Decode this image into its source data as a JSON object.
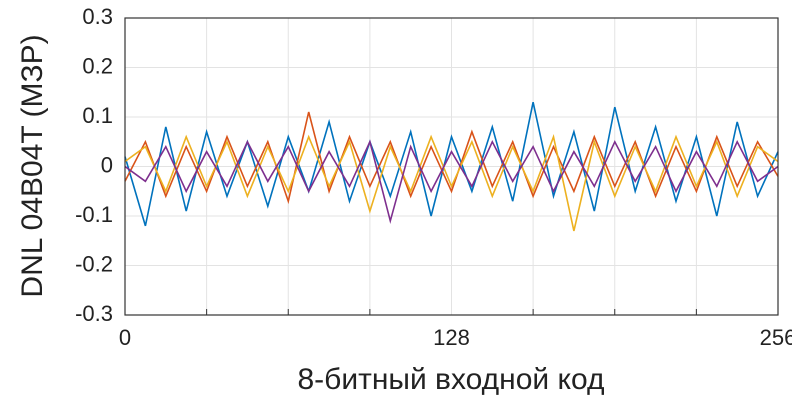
{
  "chart_data": {
    "type": "line",
    "ylabel": "DNL 04B04T (МЗР)",
    "xlabel": "8-битный входной код",
    "x": [
      0,
      8,
      16,
      24,
      32,
      40,
      48,
      56,
      64,
      72,
      80,
      88,
      96,
      104,
      112,
      120,
      128,
      136,
      144,
      152,
      160,
      168,
      176,
      184,
      192,
      200,
      208,
      216,
      224,
      232,
      240,
      248,
      256
    ],
    "series": [
      {
        "color": "#0072bd",
        "values": [
          0.02,
          -0.12,
          0.08,
          -0.09,
          0.07,
          -0.06,
          0.05,
          -0.08,
          0.06,
          -0.05,
          0.09,
          -0.07,
          0.05,
          -0.06,
          0.07,
          -0.1,
          0.06,
          -0.05,
          0.08,
          -0.07,
          0.13,
          -0.06,
          0.07,
          -0.09,
          0.12,
          -0.05,
          0.08,
          -0.07,
          0.06,
          -0.1,
          0.09,
          -0.06,
          0.03
        ]
      },
      {
        "color": "#d95319",
        "values": [
          -0.03,
          0.05,
          -0.06,
          0.04,
          -0.05,
          0.06,
          -0.04,
          0.05,
          -0.07,
          0.11,
          -0.05,
          0.06,
          -0.04,
          0.05,
          -0.06,
          0.04,
          -0.05,
          0.07,
          -0.04,
          0.05,
          -0.06,
          0.04,
          -0.05,
          0.06,
          -0.04,
          0.05,
          -0.06,
          0.04,
          -0.05,
          0.06,
          -0.04,
          0.05,
          -0.02
        ]
      },
      {
        "color": "#edb120",
        "values": [
          0.01,
          0.04,
          -0.05,
          0.06,
          -0.04,
          0.05,
          -0.06,
          0.04,
          -0.05,
          0.06,
          -0.04,
          0.05,
          -0.09,
          0.04,
          -0.05,
          0.06,
          -0.04,
          0.05,
          -0.06,
          0.04,
          -0.05,
          0.06,
          -0.13,
          0.05,
          -0.06,
          0.04,
          -0.05,
          0.06,
          -0.04,
          0.05,
          -0.06,
          0.04,
          0.01
        ]
      },
      {
        "color": "#7e2f8e",
        "values": [
          0,
          -0.03,
          0.04,
          -0.05,
          0.03,
          -0.04,
          0.05,
          -0.03,
          0.04,
          -0.05,
          0.03,
          -0.04,
          0.05,
          -0.11,
          0.04,
          -0.05,
          0.03,
          -0.04,
          0.05,
          -0.03,
          0.04,
          -0.05,
          0.03,
          -0.04,
          0.05,
          -0.03,
          0.04,
          -0.05,
          0.03,
          -0.04,
          0.05,
          -0.03,
          0
        ]
      }
    ],
    "xlim": [
      0,
      256
    ],
    "xticks": [
      0,
      128,
      256
    ],
    "xminor": [
      32,
      64,
      96,
      160,
      192,
      224
    ],
    "ylim": [
      -0.3,
      0.3
    ],
    "yticks": [
      -0.3,
      -0.2,
      -0.1,
      0,
      0.1,
      0.2,
      0.3
    ],
    "grid": true
  }
}
